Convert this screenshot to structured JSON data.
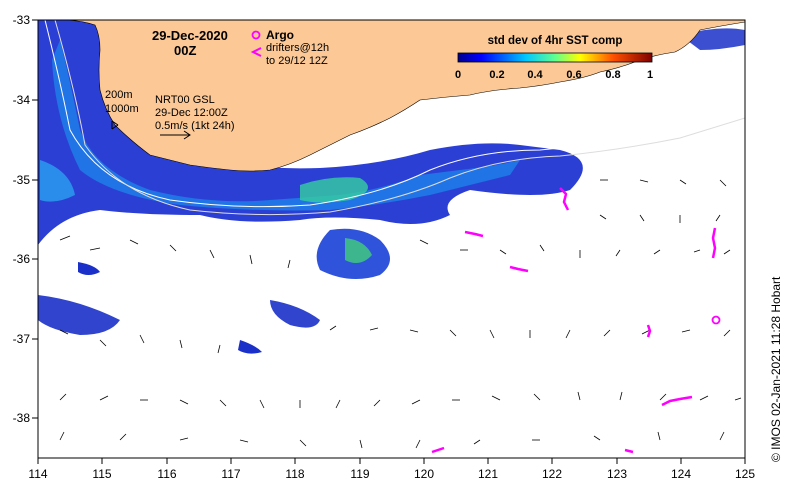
{
  "map": {
    "date": "29-Dec-2020",
    "hour": "00Z",
    "lon_ticks": [
      "114",
      "115",
      "116",
      "117",
      "118",
      "119",
      "120",
      "121",
      "122",
      "123",
      "124",
      "125"
    ],
    "lat_ticks": [
      "-33",
      "-34",
      "-35",
      "-36",
      "-37",
      "-38"
    ],
    "lon_range": [
      114,
      125
    ],
    "lat_range": [
      -38.5,
      -33
    ],
    "land_color": "#fbc896",
    "drifter_color": "#ff00ff"
  },
  "legend": {
    "argo_label": "Argo",
    "drifters_label": "drifters@12h",
    "drifters_sub": "to 29/12 12Z",
    "argo_symbol": "circle-icon",
    "drifter_symbol": "chevron-icon"
  },
  "colorbar": {
    "title": "std dev of 4hr SST comp",
    "ticks": [
      "0",
      "0.2",
      "0.4",
      "0.6",
      "0.8",
      "1"
    ],
    "colors": [
      "#00008f",
      "#0000ff",
      "#0070ff",
      "#00dfff",
      "#50ff9f",
      "#c0ff30",
      "#ffd000",
      "#ff6000",
      "#d00000",
      "#800000"
    ]
  },
  "annotations": {
    "iso200": "200m",
    "iso1000": "1000m",
    "gsl_title": "NRT00 GSL",
    "gsl_date": "29-Dec 12:00Z",
    "gsl_scale": "0.5m/s (1kt 24h)"
  },
  "credit": "© IMOS 02-Jan-2021 11:28 Hobart"
}
